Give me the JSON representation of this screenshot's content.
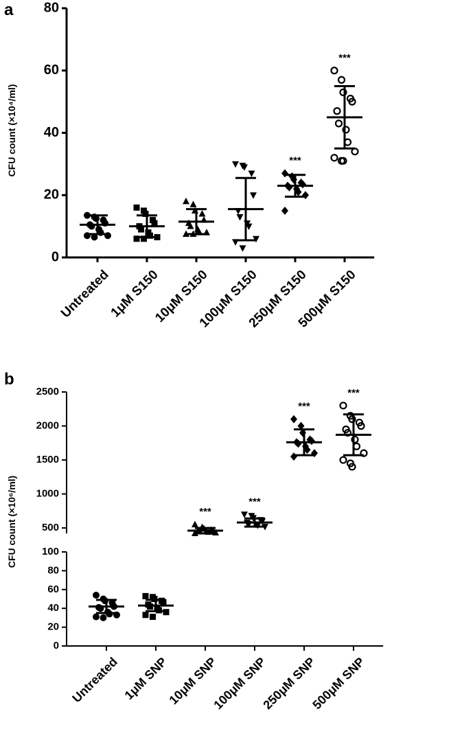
{
  "chart_data": [
    {
      "type": "dot",
      "panel": "a",
      "ylabel": "CFU count (×10⁴/ml)",
      "categories": [
        "Untreated",
        "1μM S150",
        "10μM S150",
        "100μM S150",
        "250μM S150",
        "500μM S150"
      ],
      "markers": [
        "circle",
        "square",
        "triangle-up",
        "triangle-down",
        "diamond",
        "open-circle"
      ],
      "values": [
        [
          13.5,
          13,
          12.5,
          12,
          11,
          10.5,
          10,
          9,
          8,
          7,
          7,
          6.5
        ],
        [
          16,
          15,
          14,
          12,
          11,
          10,
          9,
          8,
          7,
          6.5,
          6,
          6
        ],
        [
          18,
          17,
          15,
          14,
          12,
          11,
          10,
          9,
          8,
          8,
          7.5,
          7.5
        ],
        [
          30,
          29.5,
          29,
          27,
          20,
          15,
          13,
          11,
          10,
          6,
          5,
          3
        ],
        [
          27,
          26,
          25,
          24,
          23.5,
          23,
          22.5,
          22,
          21,
          20,
          15
        ],
        [
          60,
          57,
          53,
          51,
          50,
          47,
          43,
          41,
          37,
          34,
          32,
          31,
          31
        ]
      ],
      "means": [
        10.5,
        10,
        11.5,
        15.5,
        23,
        45
      ],
      "sds": [
        3,
        3.5,
        4,
        10,
        3.5,
        10
      ],
      "annotations": [
        null,
        null,
        null,
        null,
        "***",
        "***"
      ],
      "segments": [
        {
          "ylim": [
            0,
            80
          ],
          "yticks": [
            0,
            20,
            40,
            60,
            80
          ]
        }
      ]
    },
    {
      "type": "dot",
      "panel": "b",
      "ylabel": "CFU count (×10⁶/ml)",
      "categories": [
        "Untreated",
        "1μM SNP",
        "10μM SNP",
        "100μM SNP",
        "250μM SNP",
        "500μM SNP"
      ],
      "markers": [
        "circle",
        "square",
        "triangle-up",
        "triangle-down",
        "diamond",
        "open-circle"
      ],
      "values": [
        [
          54,
          50,
          48,
          46,
          42,
          41,
          40,
          36,
          34,
          33,
          31,
          30
        ],
        [
          53,
          52,
          50,
          48,
          46,
          44,
          42,
          40,
          38,
          36,
          33,
          31
        ],
        [
          550,
          510,
          490,
          470,
          460,
          455,
          450,
          445,
          440,
          430,
          420
        ],
        [
          700,
          680,
          650,
          620,
          600,
          580,
          560,
          550,
          540,
          520
        ],
        [
          2100,
          2000,
          1900,
          1800,
          1780,
          1760,
          1740,
          1700,
          1650,
          1600,
          1550
        ],
        [
          2300,
          2150,
          2100,
          2050,
          2000,
          1950,
          1900,
          1800,
          1700,
          1600,
          1500,
          1450,
          1400
        ]
      ],
      "means": [
        42,
        43,
        460,
        580,
        1760,
        1870
      ],
      "sds": [
        7,
        6,
        40,
        60,
        190,
        300
      ],
      "annotations": [
        null,
        null,
        "***",
        "***",
        "***",
        "***"
      ],
      "segments": [
        {
          "ylim": [
            0,
            100
          ],
          "yticks": [
            0,
            20,
            40,
            60,
            80,
            100
          ]
        },
        {
          "ylim": [
            420,
            2500
          ],
          "yticks": [
            500,
            1000,
            1500,
            2000,
            2500
          ]
        }
      ]
    }
  ]
}
